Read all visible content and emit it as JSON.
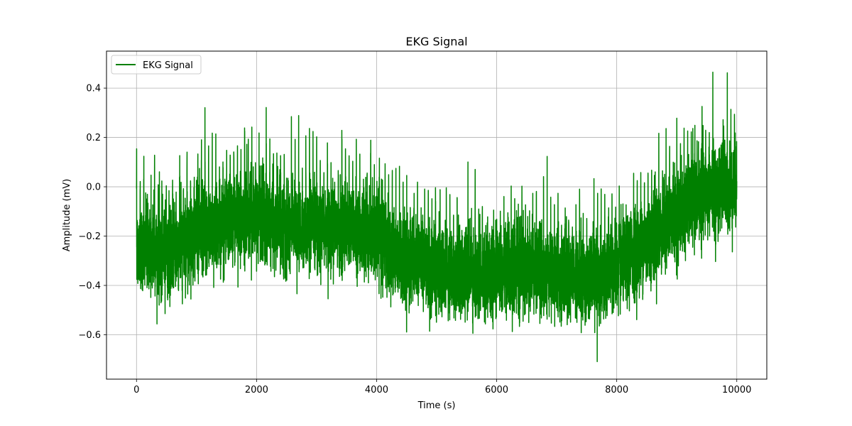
{
  "chart_data": {
    "type": "line",
    "title": "EKG Signal",
    "xlabel": "Time (s)",
    "ylabel": "Amplitude (mV)",
    "xlim": [
      -500,
      10500
    ],
    "ylim": [
      -0.78,
      0.55
    ],
    "x_ticks": [
      0,
      2000,
      4000,
      6000,
      8000,
      10000
    ],
    "y_ticks": [
      -0.6,
      -0.4,
      -0.2,
      0.0,
      0.2,
      0.4
    ],
    "x_tick_labels": [
      "0",
      "2000",
      "4000",
      "6000",
      "8000",
      "10000"
    ],
    "y_tick_labels": [
      "−0.6",
      "−0.4",
      "−0.2",
      "0.0",
      "0.2",
      "0.4"
    ],
    "grid": true,
    "legend": {
      "position": "top-left",
      "entries": [
        "EKG Signal"
      ]
    },
    "series": [
      {
        "name": "EKG Signal",
        "color": "#008000",
        "x_range": [
          0,
          10000
        ],
        "n_points": 10000,
        "trend": {
          "x": [
            0,
            500,
            1000,
            1500,
            2000,
            2500,
            3000,
            3500,
            4000,
            4500,
            5000,
            5500,
            6000,
            6500,
            7000,
            7500,
            8000,
            8500,
            9000,
            9500,
            10000
          ],
          "y": [
            -0.24,
            -0.27,
            -0.2,
            -0.14,
            -0.12,
            -0.16,
            -0.18,
            -0.16,
            -0.2,
            -0.3,
            -0.33,
            -0.36,
            -0.35,
            -0.33,
            -0.35,
            -0.38,
            -0.33,
            -0.22,
            -0.12,
            -0.02,
            0.0
          ]
        },
        "y_min": -0.72,
        "y_max": 0.48
      }
    ]
  }
}
